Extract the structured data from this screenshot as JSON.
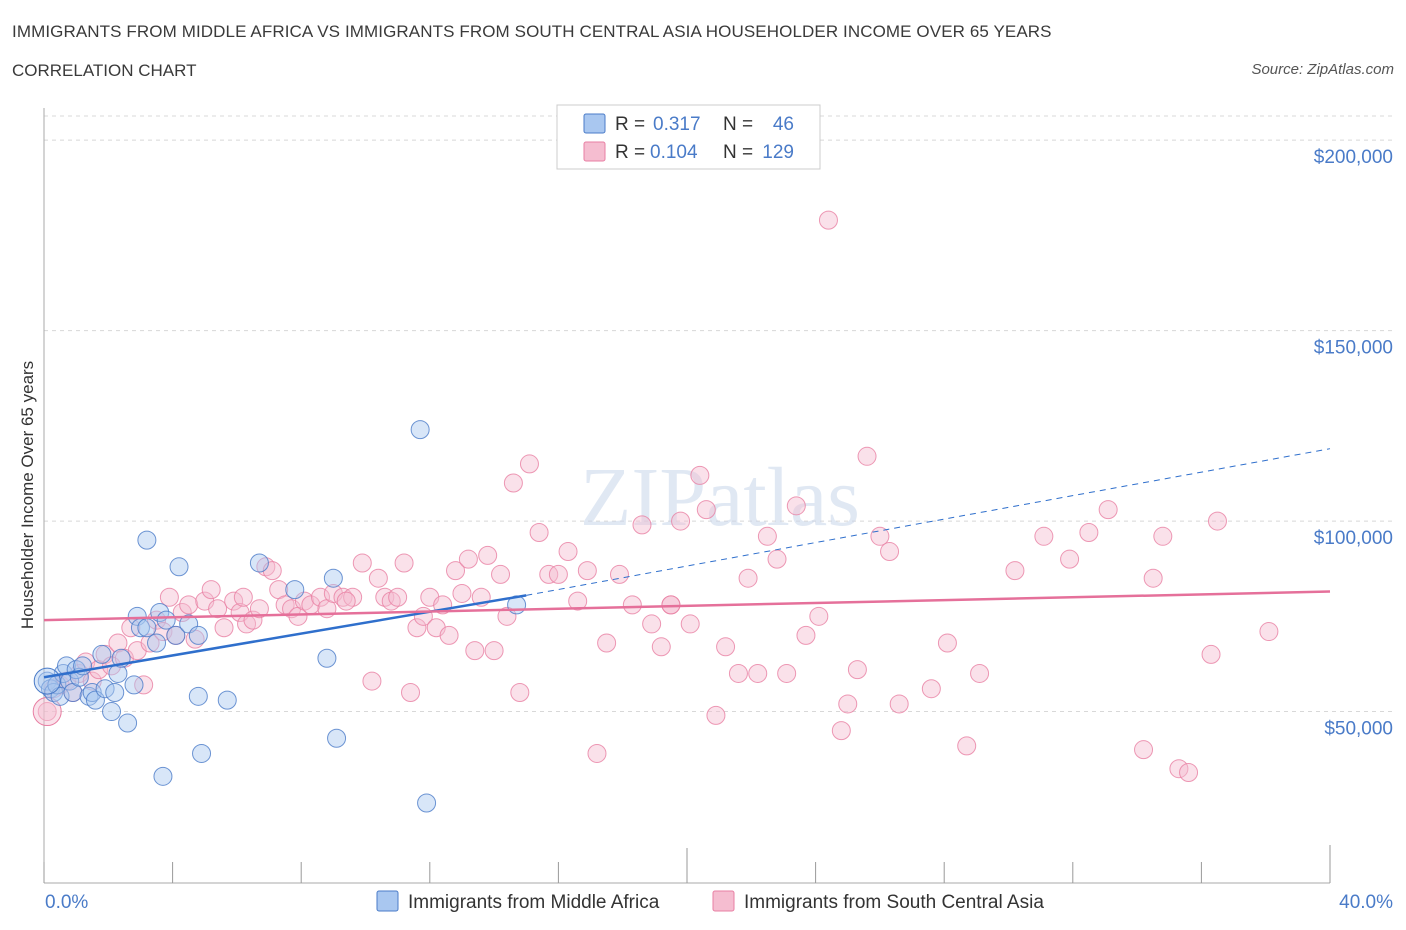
{
  "header": {
    "title": "IMMIGRANTS FROM MIDDLE AFRICA VS IMMIGRANTS FROM SOUTH CENTRAL ASIA HOUSEHOLDER INCOME OVER 65 YEARS",
    "subtitle": "CORRELATION CHART",
    "source": "Source: ZipAtlas.com"
  },
  "colors": {
    "blue": "#4a7bc8",
    "blue_fill": "#a9c7f0",
    "blue_line": "#2f6fcc",
    "pink": "#e87fa3",
    "pink_fill": "#f5bdd0",
    "pink_line": "#e5709a",
    "grid": "#d8d8d8"
  },
  "legend_box": {
    "r_label": "R =",
    "n_label": "N =",
    "series": [
      {
        "r": "0.317",
        "n": "46"
      },
      {
        "r": "0.104",
        "n": "129"
      }
    ]
  },
  "chart_data": {
    "type": "scatter",
    "title": "IMMIGRANTS FROM MIDDLE AFRICA VS IMMIGRANTS FROM SOUTH CENTRAL ASIA HOUSEHOLDER INCOME OVER 65 YEARS",
    "xlabel": "",
    "ylabel": "Householder Income Over 65 years",
    "xlim": [
      0,
      40
    ],
    "ylim": [
      5000,
      210000
    ],
    "x_tick_labels": [
      "0.0%",
      "40.0%"
    ],
    "y_ticks": [
      50000,
      100000,
      150000,
      200000
    ],
    "y_tick_labels": [
      "$50,000",
      "$100,000",
      "$150,000",
      "$200,000"
    ],
    "watermark": "ZIPatlas",
    "series": [
      {
        "name": "Immigrants from Middle Africa",
        "color": "blue",
        "r": 0.317,
        "n": 46,
        "trend": {
          "x0": 0,
          "y0": 59000,
          "x1": 15,
          "y1": 80500,
          "dash_to_x": 40,
          "dash_to_y": 119000
        },
        "points": [
          [
            0.1,
            58000
          ],
          [
            0.2,
            56000
          ],
          [
            0.3,
            55000
          ],
          [
            0.4,
            57000
          ],
          [
            0.5,
            54000
          ],
          [
            0.6,
            60000
          ],
          [
            0.7,
            62000
          ],
          [
            0.8,
            58000
          ],
          [
            0.9,
            55000
          ],
          [
            1.0,
            61000
          ],
          [
            1.1,
            59000
          ],
          [
            1.2,
            62000
          ],
          [
            1.4,
            54000
          ],
          [
            1.5,
            55000
          ],
          [
            1.6,
            53000
          ],
          [
            1.8,
            65000
          ],
          [
            1.9,
            56000
          ],
          [
            2.1,
            50000
          ],
          [
            2.2,
            55000
          ],
          [
            2.3,
            60000
          ],
          [
            2.4,
            64000
          ],
          [
            2.6,
            47000
          ],
          [
            2.8,
            57000
          ],
          [
            2.9,
            75000
          ],
          [
            3.0,
            72000
          ],
          [
            3.2,
            72000
          ],
          [
            3.2,
            95000
          ],
          [
            3.5,
            68000
          ],
          [
            3.6,
            76000
          ],
          [
            3.8,
            74000
          ],
          [
            4.1,
            70000
          ],
          [
            4.2,
            88000
          ],
          [
            4.5,
            73000
          ],
          [
            4.8,
            70000
          ],
          [
            4.8,
            54000
          ],
          [
            4.9,
            39000
          ],
          [
            5.7,
            53000
          ],
          [
            6.7,
            89000
          ],
          [
            7.8,
            82000
          ],
          [
            8.8,
            64000
          ],
          [
            9.0,
            85000
          ],
          [
            9.1,
            43000
          ],
          [
            3.7,
            33000
          ],
          [
            11.7,
            124000
          ],
          [
            11.9,
            26000
          ],
          [
            14.7,
            78000
          ]
        ]
      },
      {
        "name": "Immigrants from South Central Asia",
        "color": "pink",
        "r": 0.104,
        "n": 129,
        "trend": {
          "x0": 0,
          "y0": 74000,
          "x1": 40,
          "y1": 81500
        },
        "points": [
          [
            0.1,
            50000
          ],
          [
            0.3,
            56000
          ],
          [
            0.5,
            57000
          ],
          [
            0.7,
            58000
          ],
          [
            0.9,
            55000
          ],
          [
            1.1,
            60000
          ],
          [
            1.3,
            63000
          ],
          [
            1.5,
            58000
          ],
          [
            1.7,
            61000
          ],
          [
            1.9,
            65000
          ],
          [
            2.1,
            62000
          ],
          [
            2.3,
            68000
          ],
          [
            2.5,
            64000
          ],
          [
            2.7,
            72000
          ],
          [
            2.9,
            66000
          ],
          [
            3.1,
            57000
          ],
          [
            3.3,
            68000
          ],
          [
            3.5,
            74000
          ],
          [
            3.7,
            71000
          ],
          [
            3.9,
            80000
          ],
          [
            4.1,
            70000
          ],
          [
            4.3,
            76000
          ],
          [
            4.5,
            78000
          ],
          [
            4.7,
            69000
          ],
          [
            5.0,
            79000
          ],
          [
            5.2,
            82000
          ],
          [
            5.4,
            77000
          ],
          [
            5.6,
            72000
          ],
          [
            5.9,
            79000
          ],
          [
            6.1,
            76000
          ],
          [
            6.3,
            73000
          ],
          [
            6.5,
            74000
          ],
          [
            6.7,
            77000
          ],
          [
            6.9,
            88000
          ],
          [
            7.1,
            87000
          ],
          [
            7.3,
            82000
          ],
          [
            7.5,
            78000
          ],
          [
            7.7,
            77000
          ],
          [
            7.9,
            75000
          ],
          [
            8.1,
            79000
          ],
          [
            8.3,
            78000
          ],
          [
            8.6,
            80000
          ],
          [
            8.8,
            77000
          ],
          [
            9.0,
            81000
          ],
          [
            9.3,
            80000
          ],
          [
            9.6,
            80000
          ],
          [
            9.9,
            89000
          ],
          [
            10.2,
            58000
          ],
          [
            10.4,
            85000
          ],
          [
            10.6,
            80000
          ],
          [
            10.8,
            79000
          ],
          [
            11.0,
            80000
          ],
          [
            11.2,
            89000
          ],
          [
            11.4,
            55000
          ],
          [
            11.6,
            72000
          ],
          [
            11.8,
            75000
          ],
          [
            12.0,
            80000
          ],
          [
            12.2,
            72000
          ],
          [
            12.4,
            78000
          ],
          [
            12.6,
            70000
          ],
          [
            12.8,
            87000
          ],
          [
            13.0,
            81000
          ],
          [
            13.2,
            90000
          ],
          [
            13.4,
            66000
          ],
          [
            13.6,
            80000
          ],
          [
            13.8,
            91000
          ],
          [
            14.0,
            66000
          ],
          [
            14.2,
            86000
          ],
          [
            14.4,
            75000
          ],
          [
            14.6,
            110000
          ],
          [
            14.8,
            55000
          ],
          [
            15.1,
            115000
          ],
          [
            15.4,
            97000
          ],
          [
            15.7,
            86000
          ],
          [
            16.0,
            86000
          ],
          [
            16.3,
            92000
          ],
          [
            16.6,
            79000
          ],
          [
            16.9,
            87000
          ],
          [
            17.2,
            39000
          ],
          [
            17.5,
            68000
          ],
          [
            17.9,
            86000
          ],
          [
            18.3,
            78000
          ],
          [
            18.6,
            99000
          ],
          [
            18.9,
            73000
          ],
          [
            19.2,
            67000
          ],
          [
            19.5,
            78000
          ],
          [
            19.8,
            100000
          ],
          [
            20.1,
            73000
          ],
          [
            20.4,
            112000
          ],
          [
            20.6,
            103000
          ],
          [
            20.9,
            49000
          ],
          [
            21.2,
            67000
          ],
          [
            21.6,
            60000
          ],
          [
            21.9,
            85000
          ],
          [
            22.2,
            60000
          ],
          [
            22.5,
            96000
          ],
          [
            22.8,
            90000
          ],
          [
            23.1,
            60000
          ],
          [
            23.4,
            104000
          ],
          [
            23.7,
            70000
          ],
          [
            24.1,
            75000
          ],
          [
            24.4,
            179000
          ],
          [
            24.8,
            45000
          ],
          [
            25.0,
            52000
          ],
          [
            25.3,
            61000
          ],
          [
            25.6,
            117000
          ],
          [
            26.0,
            96000
          ],
          [
            26.3,
            92000
          ],
          [
            26.6,
            52000
          ],
          [
            27.6,
            56000
          ],
          [
            28.1,
            68000
          ],
          [
            28.7,
            41000
          ],
          [
            29.1,
            60000
          ],
          [
            30.2,
            87000
          ],
          [
            31.1,
            96000
          ],
          [
            31.9,
            90000
          ],
          [
            32.5,
            97000
          ],
          [
            33.1,
            103000
          ],
          [
            34.2,
            40000
          ],
          [
            34.5,
            85000
          ],
          [
            34.8,
            96000
          ],
          [
            35.3,
            35000
          ],
          [
            35.6,
            34000
          ],
          [
            36.3,
            65000
          ],
          [
            36.5,
            100000
          ],
          [
            38.1,
            71000
          ],
          [
            19.5,
            78000
          ],
          [
            9.4,
            79000
          ],
          [
            6.2,
            80000
          ]
        ]
      }
    ]
  },
  "bottom_legend": [
    {
      "label": "Immigrants from Middle Africa",
      "color": "blue"
    },
    {
      "label": "Immigrants from South Central Asia",
      "color": "pink"
    }
  ]
}
